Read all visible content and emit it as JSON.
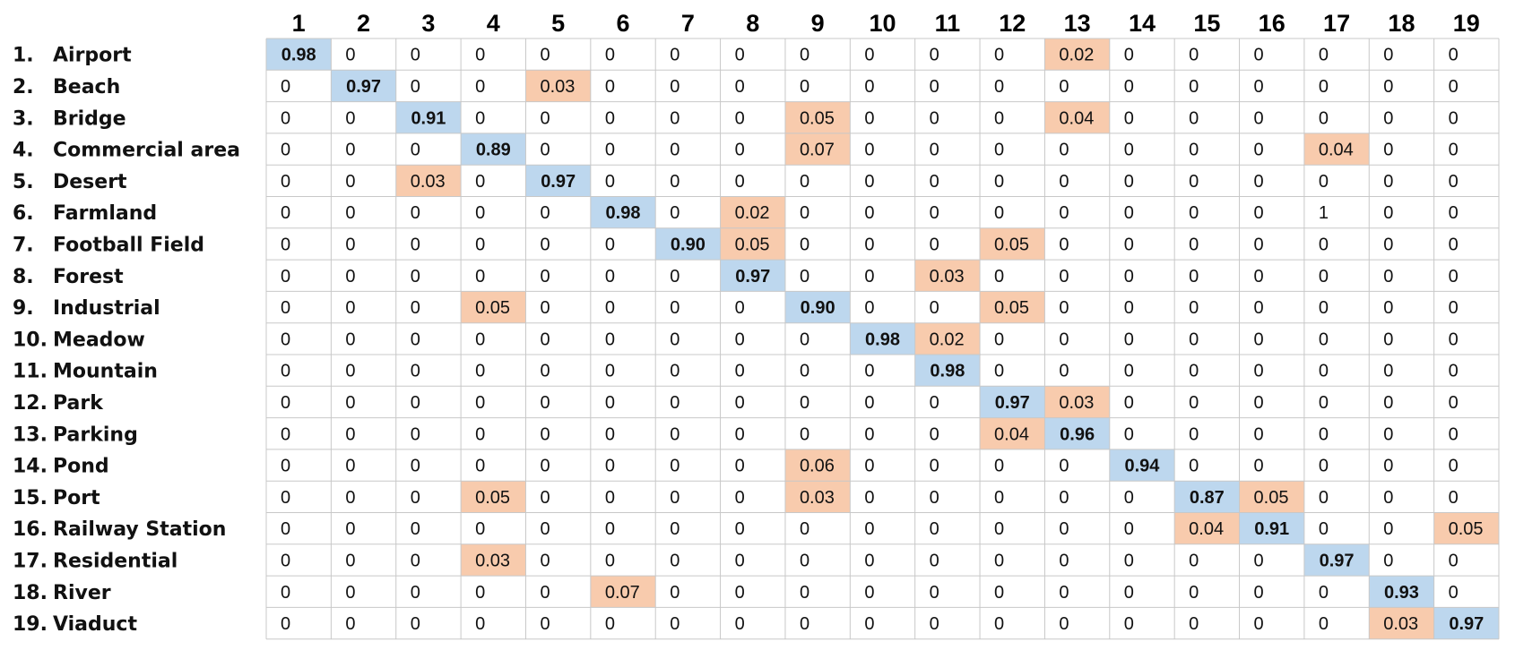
{
  "chart_data": {
    "type": "heatmap",
    "title": "",
    "xlabel": "",
    "ylabel": "",
    "columns": [
      "1",
      "2",
      "3",
      "4",
      "5",
      "6",
      "7",
      "8",
      "9",
      "10",
      "11",
      "12",
      "13",
      "14",
      "15",
      "16",
      "17",
      "18",
      "19"
    ],
    "rows": [
      {
        "number": "1.",
        "name": "Airport"
      },
      {
        "number": "2.",
        "name": "Beach"
      },
      {
        "number": "3.",
        "name": "Bridge"
      },
      {
        "number": "4.",
        "name": "Commercial area"
      },
      {
        "number": "5.",
        "name": "Desert"
      },
      {
        "number": "6.",
        "name": "Farmland"
      },
      {
        "number": "7.",
        "name": "Football Field"
      },
      {
        "number": "8.",
        "name": "Forest"
      },
      {
        "number": "9.",
        "name": "Industrial"
      },
      {
        "number": "10.",
        "name": "Meadow"
      },
      {
        "number": "11.",
        "name": "Mountain"
      },
      {
        "number": "12.",
        "name": "Park"
      },
      {
        "number": "13.",
        "name": "Parking"
      },
      {
        "number": "14.",
        "name": "Pond"
      },
      {
        "number": "15.",
        "name": "Port"
      },
      {
        "number": "16.",
        "name": "Railway Station"
      },
      {
        "number": "17.",
        "name": "Residential"
      },
      {
        "number": "18.",
        "name": "River"
      },
      {
        "number": "19.",
        "name": "Viaduct"
      }
    ],
    "values": [
      [
        "0.98",
        "0",
        "0",
        "0",
        "0",
        "0",
        "0",
        "0",
        "0",
        "0",
        "0",
        "0",
        "0.02",
        "0",
        "0",
        "0",
        "0",
        "0",
        "0"
      ],
      [
        "0",
        "0.97",
        "0",
        "0",
        "0.03",
        "0",
        "0",
        "0",
        "0",
        "0",
        "0",
        "0",
        "0",
        "0",
        "0",
        "0",
        "0",
        "0",
        "0"
      ],
      [
        "0",
        "0",
        "0.91",
        "0",
        "0",
        "0",
        "0",
        "0",
        "0.05",
        "0",
        "0",
        "0",
        "0.04",
        "0",
        "0",
        "0",
        "0",
        "0",
        "0"
      ],
      [
        "0",
        "0",
        "0",
        "0.89",
        "0",
        "0",
        "0",
        "0",
        "0.07",
        "0",
        "0",
        "0",
        "0",
        "0",
        "0",
        "0",
        "0.04",
        "0",
        "0"
      ],
      [
        "0",
        "0",
        "0.03",
        "0",
        "0.97",
        "0",
        "0",
        "0",
        "0",
        "0",
        "0",
        "0",
        "0",
        "0",
        "0",
        "0",
        "0",
        "0",
        "0"
      ],
      [
        "0",
        "0",
        "0",
        "0",
        "0",
        "0.98",
        "0",
        "0.02",
        "0",
        "0",
        "0",
        "0",
        "0",
        "0",
        "0",
        "0",
        "1",
        "0",
        "0"
      ],
      [
        "0",
        "0",
        "0",
        "0",
        "0",
        "0",
        "0.90",
        "0.05",
        "0",
        "0",
        "0",
        "0.05",
        "0",
        "0",
        "0",
        "0",
        "0",
        "0",
        "0"
      ],
      [
        "0",
        "0",
        "0",
        "0",
        "0",
        "0",
        "0",
        "0.97",
        "0",
        "0",
        "0.03",
        "0",
        "0",
        "0",
        "0",
        "0",
        "0",
        "0",
        "0"
      ],
      [
        "0",
        "0",
        "0",
        "0.05",
        "0",
        "0",
        "0",
        "0",
        "0.90",
        "0",
        "0",
        "0.05",
        "0",
        "0",
        "0",
        "0",
        "0",
        "0",
        "0"
      ],
      [
        "0",
        "0",
        "0",
        "0",
        "0",
        "0",
        "0",
        "0",
        "0",
        "0.98",
        "0.02",
        "0",
        "0",
        "0",
        "0",
        "0",
        "0",
        "0",
        "0"
      ],
      [
        "0",
        "0",
        "0",
        "0",
        "0",
        "0",
        "0",
        "0",
        "0",
        "0",
        "0.98",
        "0",
        "0",
        "0",
        "0",
        "0",
        "0",
        "0",
        "0"
      ],
      [
        "0",
        "0",
        "0",
        "0",
        "0",
        "0",
        "0",
        "0",
        "0",
        "0",
        "0",
        "0.97",
        "0.03",
        "0",
        "0",
        "0",
        "0",
        "0",
        "0"
      ],
      [
        "0",
        "0",
        "0",
        "0",
        "0",
        "0",
        "0",
        "0",
        "0",
        "0",
        "0",
        "0.04",
        "0.96",
        "0",
        "0",
        "0",
        "0",
        "0",
        "0"
      ],
      [
        "0",
        "0",
        "0",
        "0",
        "0",
        "0",
        "0",
        "0",
        "0.06",
        "0",
        "0",
        "0",
        "0",
        "0.94",
        "0",
        "0",
        "0",
        "0",
        "0"
      ],
      [
        "0",
        "0",
        "0",
        "0.05",
        "0",
        "0",
        "0",
        "0",
        "0.03",
        "0",
        "0",
        "0",
        "0",
        "0",
        "0.87",
        "0.05",
        "0",
        "0",
        "0"
      ],
      [
        "0",
        "0",
        "0",
        "0",
        "0",
        "0",
        "0",
        "0",
        "0",
        "0",
        "0",
        "0",
        "0",
        "0",
        "0.04",
        "0.91",
        "0",
        "0",
        "0.05"
      ],
      [
        "0",
        "0",
        "0",
        "0.03",
        "0",
        "0",
        "0",
        "0",
        "0",
        "0",
        "0",
        "0",
        "0",
        "0",
        "0",
        "0",
        "0.97",
        "0",
        "0"
      ],
      [
        "0",
        "0",
        "0",
        "0",
        "0",
        "0.07",
        "0",
        "0",
        "0",
        "0",
        "0",
        "0",
        "0",
        "0",
        "0",
        "0",
        "0",
        "0.93",
        "0"
      ],
      [
        "0",
        "0",
        "0",
        "0",
        "0",
        "0",
        "0",
        "0",
        "0",
        "0",
        "0",
        "0",
        "0",
        "0",
        "0",
        "0",
        "0",
        "0.03",
        "0.97"
      ]
    ],
    "highlight_colors": {
      "diagonal": "#bdd7ee",
      "off_diagonal_nonzero": "#f8cbad",
      "text": "#111111",
      "grid": "#c8c8c8",
      "background": "#ffffff"
    },
    "grid": true,
    "legend": "none"
  }
}
